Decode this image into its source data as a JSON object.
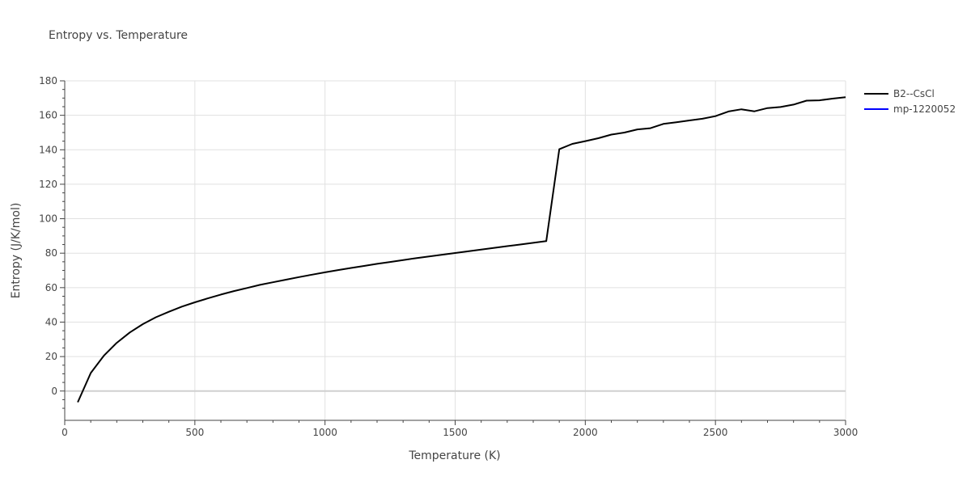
{
  "chart_data": {
    "type": "line",
    "title": "Entropy vs. Temperature",
    "xlabel": "Temperature (K)",
    "ylabel": "Entropy (J/K/mol)",
    "xlim": [
      0,
      3000
    ],
    "ylim": [
      -17,
      180
    ],
    "xticks": [
      0,
      500,
      1000,
      1500,
      2000,
      2500,
      3000
    ],
    "yticks": [
      0,
      20,
      40,
      60,
      80,
      100,
      120,
      140,
      160,
      180
    ],
    "grid": true,
    "legend_position": "top-right",
    "series": [
      {
        "name": "B2--CsCl",
        "color": "#000000",
        "x": [
          50,
          100,
          150,
          200,
          250,
          300,
          350,
          400,
          450,
          500,
          550,
          600,
          650,
          700,
          750,
          800,
          850,
          900,
          950,
          1000,
          1050,
          1100,
          1150,
          1200,
          1250,
          1300,
          1350,
          1400,
          1450,
          1500,
          1550,
          1600,
          1650,
          1700,
          1750,
          1800,
          1850,
          1900,
          1950,
          2000,
          2050,
          2100,
          2150,
          2200,
          2250,
          2300,
          2350,
          2400,
          2450,
          2500,
          2550,
          2600,
          2650,
          2700,
          2750,
          2800,
          2850,
          2900,
          2950,
          3000
        ],
        "y": [
          -6.5,
          10.5,
          20.5,
          28,
          34,
          38.8,
          42.8,
          46,
          49,
          51.5,
          53.8,
          56,
          58,
          59.8,
          61.6,
          63.1,
          64.6,
          66.1,
          67.5,
          68.9,
          70.2,
          71.4,
          72.6,
          73.8,
          74.9,
          76,
          77.1,
          78.1,
          79.1,
          80.1,
          81.1,
          82.1,
          83.1,
          84.1,
          85,
          86,
          87,
          140.3,
          143.4,
          145,
          146.7,
          148.8,
          150,
          151.8,
          152.5,
          155,
          156,
          157,
          158,
          159.5,
          162.2,
          163.5,
          162.3,
          164.2,
          164.8,
          166.2,
          168.5,
          168.7,
          169.7,
          170.5
        ]
      },
      {
        "name": "mp-1220052",
        "color": "#0000ff",
        "x": [],
        "y": []
      }
    ]
  }
}
